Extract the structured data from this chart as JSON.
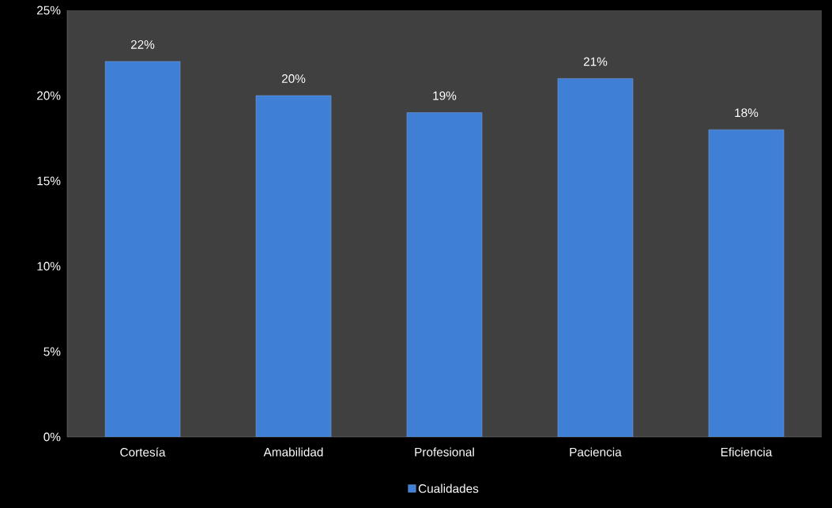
{
  "chart_data": {
    "type": "bar",
    "categories": [
      "Cortesía",
      "Amabilidad",
      "Profesional",
      "Paciencia",
      "Eficiencia"
    ],
    "series": [
      {
        "name": "Cualidades",
        "color": "#3f7fd6",
        "values": [
          22,
          20,
          19,
          21,
          18
        ],
        "value_labels": [
          "22%",
          "20%",
          "19%",
          "21%",
          "18%"
        ]
      }
    ],
    "ylim": [
      0,
      25
    ],
    "yticks": [
      {
        "value": 0,
        "label": "0%"
      },
      {
        "value": 5,
        "label": "5%"
      },
      {
        "value": 10,
        "label": "10%"
      },
      {
        "value": 15,
        "label": "15%"
      },
      {
        "value": 20,
        "label": "20%"
      },
      {
        "value": 25,
        "label": "25%"
      }
    ],
    "grid": false,
    "legend": "bottom"
  }
}
